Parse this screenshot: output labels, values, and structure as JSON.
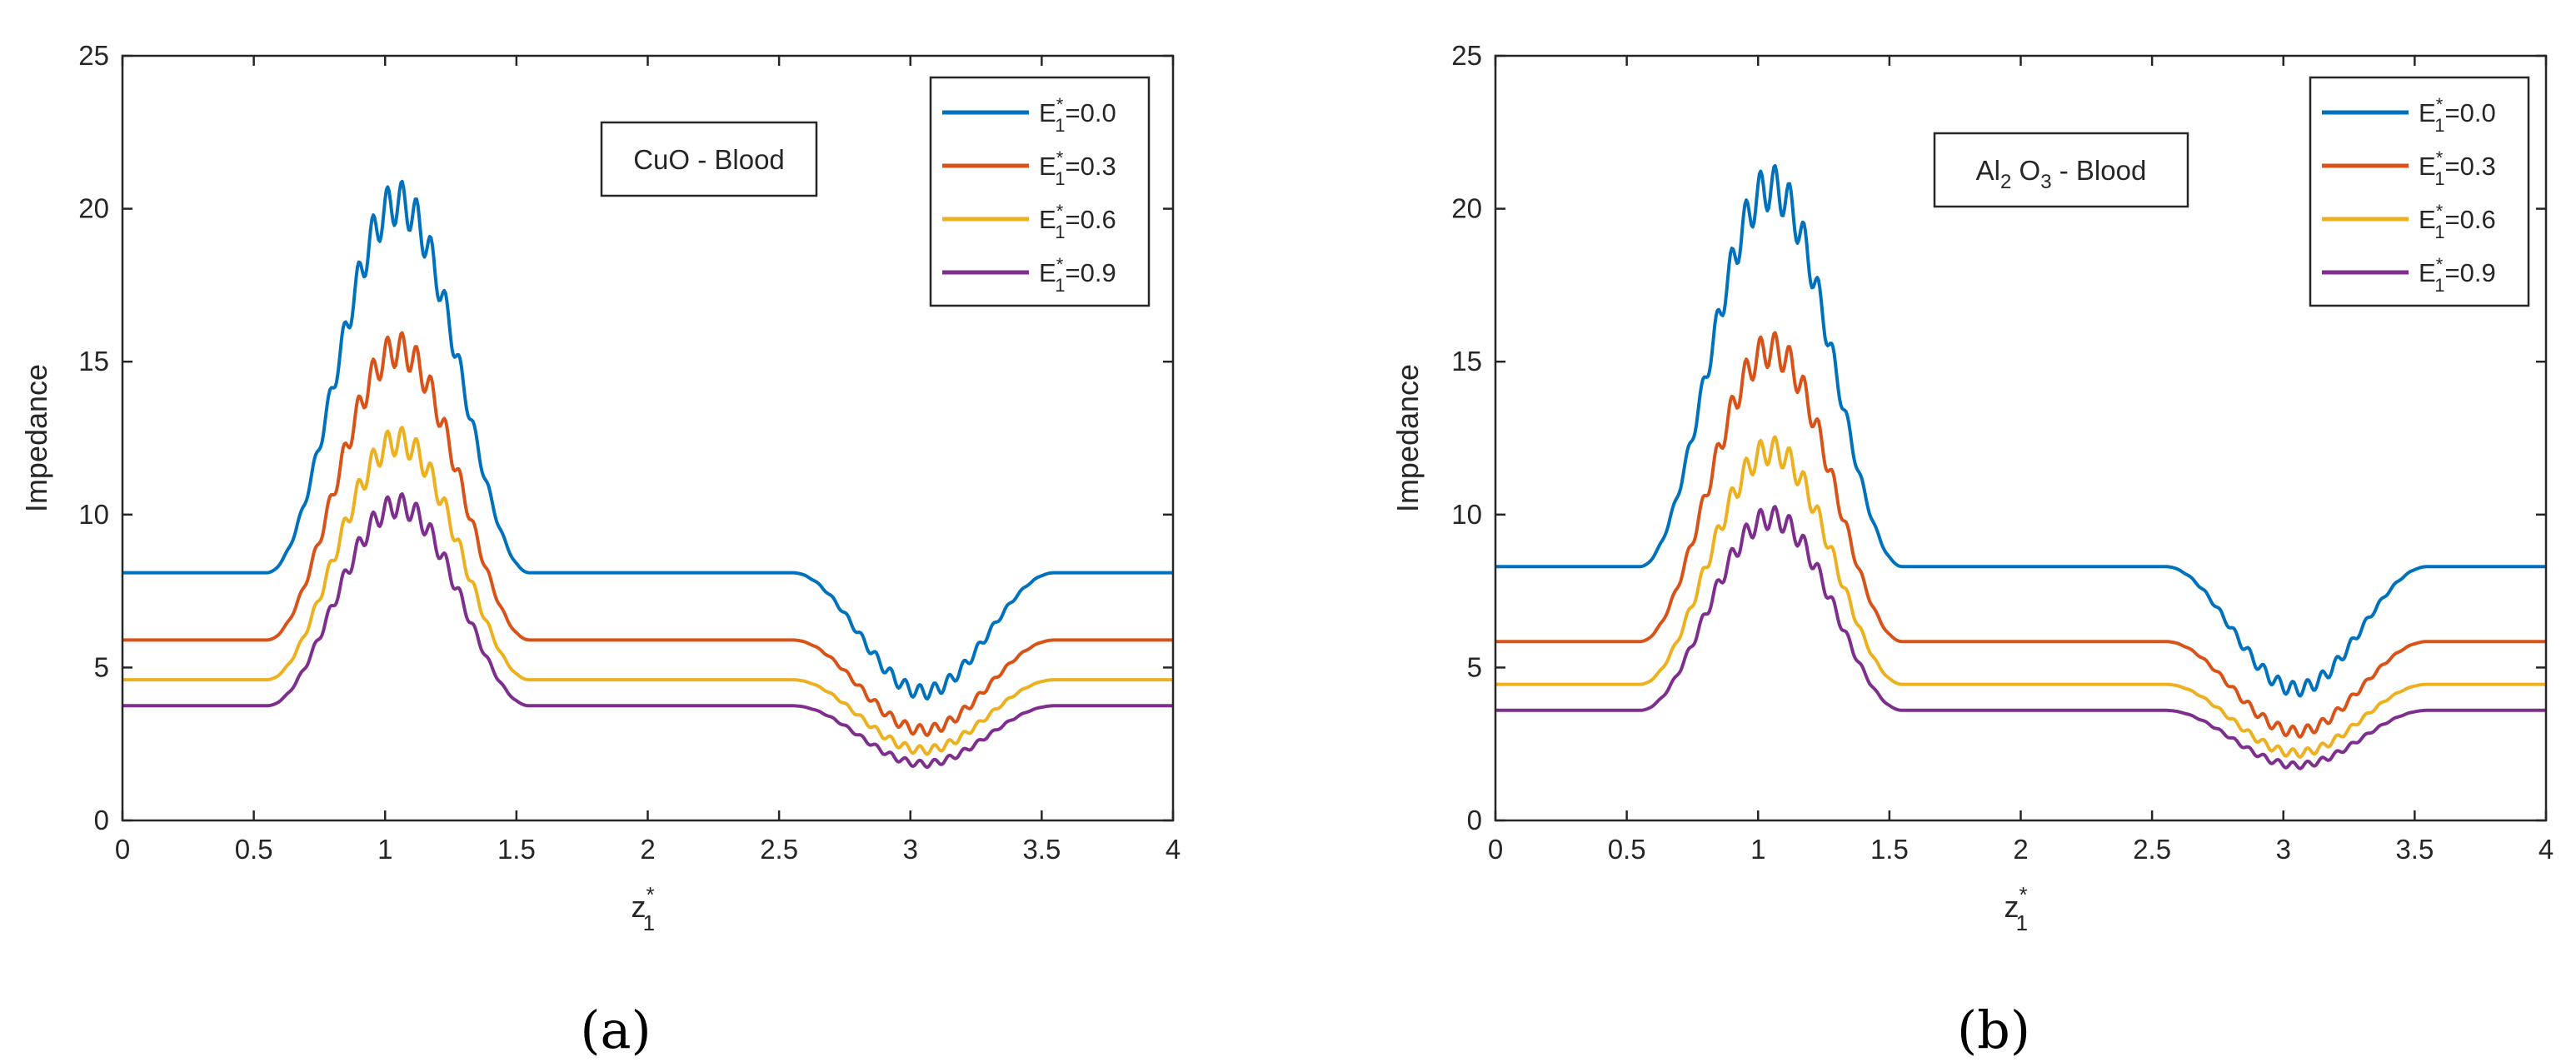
{
  "chart_data": [
    {
      "type": "line",
      "panel_label": "(a)",
      "annotation": "CuO - Blood",
      "annotation_parts": {
        "pre": "CuO",
        "sub": "",
        "post": " - Blood"
      },
      "xlabel": "z",
      "xlabel_sub": "1",
      "xlabel_sup": "*",
      "ylabel": "Impedance",
      "xlim": [
        0,
        4
      ],
      "ylim": [
        0,
        25
      ],
      "xticks": [
        "0",
        "0.5",
        "1",
        "1.5",
        "2",
        "2.5",
        "3",
        "3.5",
        "4"
      ],
      "yticks": [
        "0",
        "5",
        "10",
        "15",
        "20",
        "25"
      ],
      "stenosis": [
        {
          "start": 0.55,
          "end": 1.55,
          "direction": "up"
        },
        {
          "start": 2.55,
          "end": 3.55,
          "direction": "down"
        }
      ],
      "series": [
        {
          "name": "E1*=0.0",
          "label_main": "E",
          "label_sub": "1",
          "label_sup": "*",
          "label_value": "=0.0",
          "color": "#0072BD",
          "base": 8.1,
          "peak": 20.2,
          "trough": 4.2
        },
        {
          "name": "E1*=0.3",
          "label_main": "E",
          "label_sub": "1",
          "label_sup": "*",
          "label_value": "=0.3",
          "color": "#D95319",
          "base": 5.9,
          "peak": 15.4,
          "trough": 2.95
        },
        {
          "name": "E1*=0.6",
          "label_main": "E",
          "label_sub": "1",
          "label_sup": "*",
          "label_value": "=0.6",
          "color": "#EDB120",
          "base": 4.6,
          "peak": 12.4,
          "trough": 2.3
        },
        {
          "name": "E1*=0.9",
          "label_main": "E",
          "label_sub": "1",
          "label_sup": "*",
          "label_value": "=0.9",
          "color": "#7E2F8E",
          "base": 3.75,
          "peak": 10.3,
          "trough": 1.85
        }
      ]
    },
    {
      "type": "line",
      "panel_label": "(b)",
      "annotation": "Al2 O3 - Blood",
      "annotation_parts": {
        "pre": "Al",
        "sub": "2",
        "mid": " O",
        "sub2": "3",
        "post": " - Blood"
      },
      "xlabel": "z",
      "xlabel_sub": "1",
      "xlabel_sup": "*",
      "ylabel": "Impedance",
      "xlim": [
        0,
        4
      ],
      "ylim": [
        0,
        25
      ],
      "xticks": [
        "0",
        "0.5",
        "1",
        "1.5",
        "2",
        "2.5",
        "3",
        "3.5",
        "4"
      ],
      "yticks": [
        "0",
        "5",
        "10",
        "15",
        "20",
        "25"
      ],
      "stenosis": [
        {
          "start": 0.55,
          "end": 1.55,
          "direction": "up"
        },
        {
          "start": 2.55,
          "end": 3.55,
          "direction": "down"
        }
      ],
      "series": [
        {
          "name": "E1*=0.0",
          "label_main": "E",
          "label_sub": "1",
          "label_sup": "*",
          "label_value": "=0.0",
          "color": "#0072BD",
          "base": 8.3,
          "peak": 20.7,
          "trough": 4.3
        },
        {
          "name": "E1*=0.3",
          "label_main": "E",
          "label_sub": "1",
          "label_sup": "*",
          "label_value": "=0.3",
          "color": "#D95319",
          "base": 5.85,
          "peak": 15.4,
          "trough": 2.9
        },
        {
          "name": "E1*=0.6",
          "label_main": "E",
          "label_sub": "1",
          "label_sup": "*",
          "label_value": "=0.6",
          "color": "#EDB120",
          "base": 4.45,
          "peak": 12.1,
          "trough": 2.2
        },
        {
          "name": "E1*=0.9",
          "label_main": "E",
          "label_sub": "1",
          "label_sup": "*",
          "label_value": "=0.9",
          "color": "#7E2F8E",
          "base": 3.6,
          "peak": 9.9,
          "trough": 1.8
        }
      ]
    }
  ]
}
